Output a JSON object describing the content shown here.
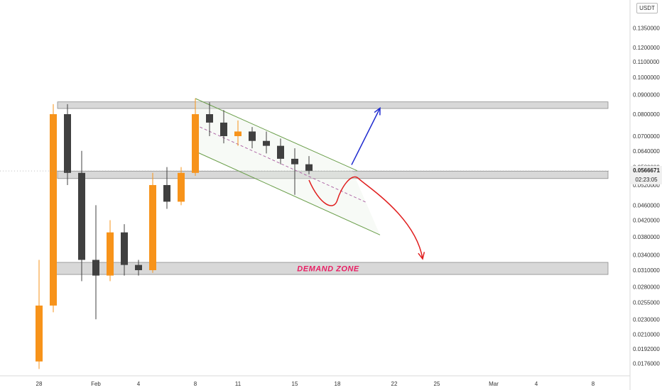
{
  "chart_data": {
    "type": "candlestick",
    "currency": "USDT",
    "last_price": "0.0566671",
    "countdown": "02:23:05",
    "y_ticks": [
      "0.1350000",
      "0.1200000",
      "0.1100000",
      "0.1000000",
      "0.0900000",
      "0.0800000",
      "0.0700000",
      "0.0640000",
      "0.0580000",
      "0.0520000",
      "0.0460000",
      "0.0420000",
      "0.0380000",
      "0.0340000",
      "0.0310000",
      "0.0280000",
      "0.0255000",
      "0.0230000",
      "0.0210000",
      "0.0192000",
      "0.0176000"
    ],
    "x_ticks": [
      "28",
      "Feb",
      "4",
      "8",
      "11",
      "15",
      "18",
      "22",
      "25",
      "Mar",
      "4",
      "8"
    ],
    "y_scale": "log",
    "grid": false,
    "zones": [
      {
        "name": "resistance",
        "from": 0.0828,
        "to": 0.0862
      },
      {
        "name": "mid_support",
        "from": 0.0541,
        "to": 0.0566
      },
      {
        "name": "demand",
        "label": "DEMAND ZONE",
        "from": 0.0302,
        "to": 0.0325
      }
    ],
    "channel": {
      "upper_start": {
        "x": "Feb 8",
        "y": 0.088
      },
      "upper_end": {
        "x": "Feb 19",
        "y": 0.0572
      },
      "lower_start": {
        "x": "Feb 8",
        "y": 0.0638
      },
      "lower_end": {
        "x": "Feb 21",
        "y": 0.0384
      }
    },
    "scenarios": [
      {
        "direction": "up",
        "color": "#1e2bd0",
        "from": {
          "x": "Feb 19",
          "y": 0.0588
        },
        "to": {
          "x": "Feb 21",
          "y": 0.083
        }
      },
      {
        "direction": "down",
        "color": "#e01e1e",
        "from": {
          "x": "Feb 16",
          "y": 0.0536
        },
        "to": {
          "x": "Feb 24",
          "y": 0.0332
        }
      }
    ],
    "candles": [
      {
        "d": "Jan 28",
        "o": 0.0178,
        "h": 0.033,
        "l": 0.017,
        "c": 0.025
      },
      {
        "d": "Jan 29",
        "o": 0.025,
        "h": 0.085,
        "l": 0.024,
        "c": 0.08
      },
      {
        "d": "Jan 30",
        "o": 0.08,
        "h": 0.085,
        "l": 0.052,
        "c": 0.056
      },
      {
        "d": "Jan 31",
        "o": 0.056,
        "h": 0.064,
        "l": 0.029,
        "c": 0.033
      },
      {
        "d": "Feb 1",
        "o": 0.033,
        "h": 0.046,
        "l": 0.023,
        "c": 0.03
      },
      {
        "d": "Feb 2",
        "o": 0.03,
        "h": 0.042,
        "l": 0.029,
        "c": 0.039
      },
      {
        "d": "Feb 3",
        "o": 0.039,
        "h": 0.041,
        "l": 0.03,
        "c": 0.032
      },
      {
        "d": "Feb 4",
        "o": 0.032,
        "h": 0.033,
        "l": 0.03,
        "c": 0.031
      },
      {
        "d": "Feb 5",
        "o": 0.031,
        "h": 0.056,
        "l": 0.0305,
        "c": 0.052
      },
      {
        "d": "Feb 6",
        "o": 0.052,
        "h": 0.058,
        "l": 0.045,
        "c": 0.047
      },
      {
        "d": "Feb 7",
        "o": 0.047,
        "h": 0.058,
        "l": 0.046,
        "c": 0.056
      },
      {
        "d": "Feb 8",
        "o": 0.056,
        "h": 0.088,
        "l": 0.055,
        "c": 0.08
      },
      {
        "d": "Feb 9",
        "o": 0.08,
        "h": 0.086,
        "l": 0.07,
        "c": 0.076
      },
      {
        "d": "Feb 10",
        "o": 0.076,
        "h": 0.082,
        "l": 0.067,
        "c": 0.07
      },
      {
        "d": "Feb 11",
        "o": 0.07,
        "h": 0.077,
        "l": 0.066,
        "c": 0.072
      },
      {
        "d": "Feb 12",
        "o": 0.072,
        "h": 0.074,
        "l": 0.065,
        "c": 0.068
      },
      {
        "d": "Feb 13",
        "o": 0.068,
        "h": 0.072,
        "l": 0.063,
        "c": 0.066
      },
      {
        "d": "Feb 14",
        "o": 0.066,
        "h": 0.069,
        "l": 0.059,
        "c": 0.061
      },
      {
        "d": "Feb 15",
        "o": 0.061,
        "h": 0.065,
        "l": 0.049,
        "c": 0.059
      },
      {
        "d": "Feb 16",
        "o": 0.059,
        "h": 0.062,
        "l": 0.0555,
        "c": 0.0567
      }
    ]
  }
}
